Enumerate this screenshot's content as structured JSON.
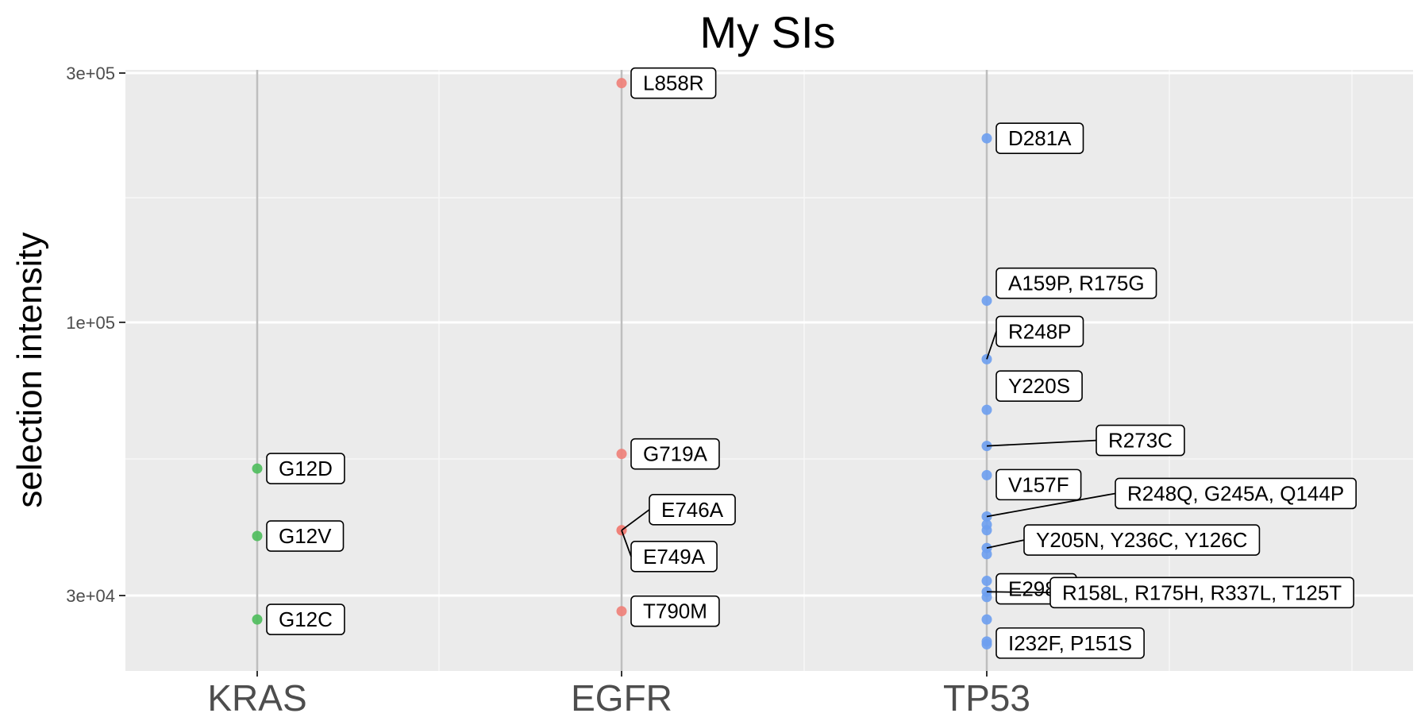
{
  "chart_data": {
    "type": "scatter",
    "title": "My SIs",
    "xlabel": "",
    "ylabel": "selection intensity",
    "y_scale": "log10",
    "ylim": [
      18500,
      315000
    ],
    "y_ticks": [
      {
        "value": 30000,
        "label": "3e+04"
      },
      {
        "value": 100000,
        "label": "1e+05"
      },
      {
        "value": 300000,
        "label": "3e+05"
      }
    ],
    "grid": true,
    "legend": "none",
    "categories": [
      "KRAS",
      "EGFR",
      "TP53"
    ],
    "colors": {
      "KRAS": "#4DBD5B",
      "EGFR": "#F08078",
      "TP53": "#6D9EF0"
    },
    "series": [
      {
        "category": "KRAS",
        "points": [
          {
            "y": 52500,
            "label": "G12D"
          },
          {
            "y": 39000,
            "label": "G12V"
          },
          {
            "y": 27000,
            "label": "G12C"
          }
        ]
      },
      {
        "category": "EGFR",
        "points": [
          {
            "y": 287000,
            "label": "L858R"
          },
          {
            "y": 56000,
            "label": "G719A"
          },
          {
            "y": 40000,
            "label": "E746A"
          },
          {
            "y": 40000,
            "label": "E749A"
          },
          {
            "y": 28000,
            "label": "T790M"
          }
        ]
      },
      {
        "category": "TP53",
        "points": [
          {
            "y": 225000,
            "label": "D281A"
          },
          {
            "y": 110000,
            "label": "A159P, R175G"
          },
          {
            "y": 85000,
            "label": "R248P"
          },
          {
            "y": 68000,
            "label": "Y220S"
          },
          {
            "y": 58000,
            "label": "R273C"
          },
          {
            "y": 51000,
            "label": "V157F"
          },
          {
            "y": 42500,
            "label": "R248Q, G245A, Q144P"
          },
          {
            "y": 41000
          },
          {
            "y": 40000
          },
          {
            "y": 37000,
            "label": "Y205N, Y236C, Y126C"
          },
          {
            "y": 36000
          },
          {
            "y": 32000,
            "label": "E298*"
          },
          {
            "y": 30500,
            "label": "R158L, R175H, R337L, T125T"
          },
          {
            "y": 29800
          },
          {
            "y": 27000
          },
          {
            "y": 24500,
            "label": "I232F, P151S"
          },
          {
            "y": 24200
          }
        ]
      }
    ]
  }
}
